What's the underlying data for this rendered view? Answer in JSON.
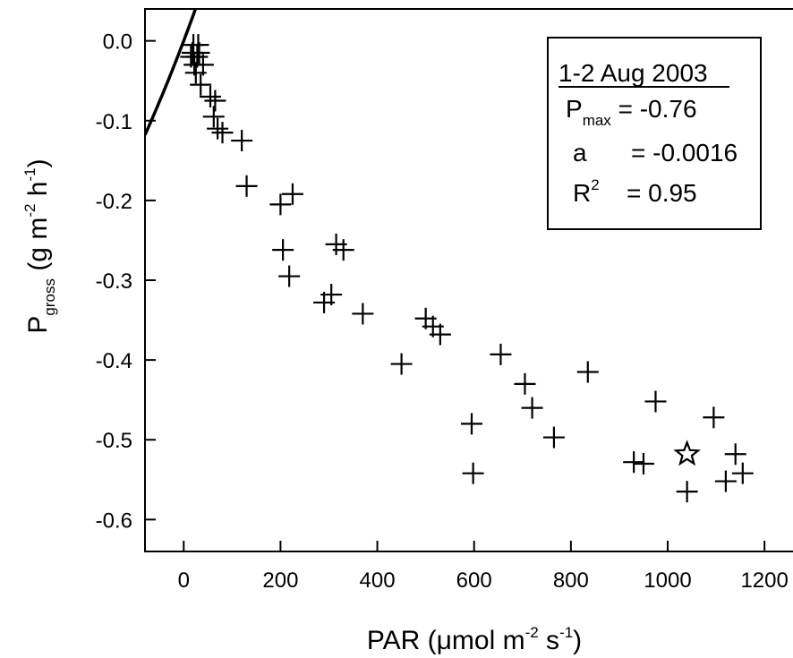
{
  "chart_data": {
    "type": "scatter",
    "xlim": [
      -80,
      1270
    ],
    "ylim": [
      -0.64,
      0.04
    ],
    "x_ticks": [
      0,
      200,
      400,
      600,
      800,
      1000,
      1200
    ],
    "y_ticks": [
      0.0,
      -0.1,
      -0.2,
      -0.3,
      -0.4,
      -0.5,
      -0.6
    ],
    "x_tick_labels": [
      "0",
      "200",
      "400",
      "600",
      "800",
      "1000",
      "1200"
    ],
    "y_tick_labels": [
      "0.0",
      "-0.1",
      "-0.2",
      "-0.3",
      "-0.4",
      "-0.5",
      "-0.6"
    ],
    "xlabel": {
      "main": "PAR  (μmol m",
      "sup1": "-2",
      "mid": " s",
      "sup2": "-1",
      "end": ")"
    },
    "ylabel": {
      "p": "P",
      "sub": "gross",
      "unit_start": "  (g m",
      "sup1": "-2",
      "unit_mid": " h",
      "sup2": "-1",
      "unit_end": ")"
    },
    "legend": {
      "title": "1-2 Aug 2003",
      "pmax_label": "P",
      "pmax_sub": "max",
      "pmax_value": " = -0.76",
      "a_label": "a",
      "a_value": "= -0.0016",
      "r2_label": "R",
      "r2_sup": "2",
      "r2_value": "= 0.95",
      "position": "top-right"
    },
    "fit": {
      "model": "P = Pmax * (1 - exp(a * PAR / Pmax))",
      "pmax": -0.76,
      "a": -0.0016
    },
    "points": [
      {
        "x": 15,
        "y": -0.02
      },
      {
        "x": 18,
        "y": -0.015
      },
      {
        "x": 20,
        "y": -0.005
      },
      {
        "x": 22,
        "y": -0.03
      },
      {
        "x": 25,
        "y": -0.04
      },
      {
        "x": 28,
        "y": -0.02
      },
      {
        "x": 30,
        "y": -0.005
      },
      {
        "x": 32,
        "y": -0.015
      },
      {
        "x": 35,
        "y": -0.055
      },
      {
        "x": 40,
        "y": -0.03
      },
      {
        "x": 55,
        "y": -0.07
      },
      {
        "x": 62,
        "y": -0.095
      },
      {
        "x": 65,
        "y": -0.075
      },
      {
        "x": 70,
        "y": -0.11
      },
      {
        "x": 80,
        "y": -0.115
      },
      {
        "x": 120,
        "y": -0.125
      },
      {
        "x": 130,
        "y": -0.182
      },
      {
        "x": 200,
        "y": -0.205
      },
      {
        "x": 205,
        "y": -0.262
      },
      {
        "x": 218,
        "y": -0.295
      },
      {
        "x": 225,
        "y": -0.192
      },
      {
        "x": 290,
        "y": -0.328
      },
      {
        "x": 305,
        "y": -0.318
      },
      {
        "x": 315,
        "y": -0.255
      },
      {
        "x": 330,
        "y": -0.262
      },
      {
        "x": 370,
        "y": -0.342
      },
      {
        "x": 450,
        "y": -0.405
      },
      {
        "x": 500,
        "y": -0.348
      },
      {
        "x": 515,
        "y": -0.358
      },
      {
        "x": 530,
        "y": -0.368
      },
      {
        "x": 595,
        "y": -0.48
      },
      {
        "x": 598,
        "y": -0.542
      },
      {
        "x": 655,
        "y": -0.393
      },
      {
        "x": 705,
        "y": -0.43
      },
      {
        "x": 720,
        "y": -0.46
      },
      {
        "x": 765,
        "y": -0.497
      },
      {
        "x": 835,
        "y": -0.415
      },
      {
        "x": 930,
        "y": -0.528
      },
      {
        "x": 950,
        "y": -0.53
      },
      {
        "x": 975,
        "y": -0.452
      },
      {
        "x": 1040,
        "y": -0.565
      },
      {
        "x": 1095,
        "y": -0.472
      },
      {
        "x": 1120,
        "y": -0.552
      },
      {
        "x": 1140,
        "y": -0.518
      },
      {
        "x": 1155,
        "y": -0.542
      }
    ],
    "star": {
      "x": 1040,
      "y": -0.518
    }
  }
}
